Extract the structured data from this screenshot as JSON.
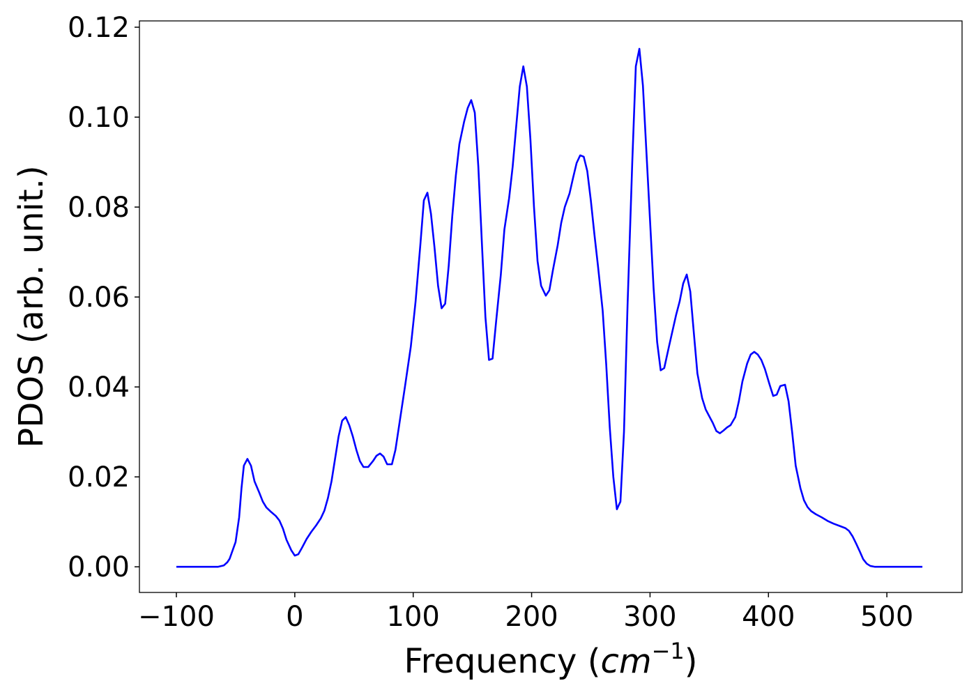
{
  "chart_data": {
    "type": "line",
    "ylabel": "PDOS (arb. unit.)",
    "xlabel": {
      "prefix": "Frequency (",
      "unit": "cm",
      "exponent": "−1",
      "suffix": ")"
    },
    "color": "#0000ff",
    "xlim": [
      -131.2,
      563.5
    ],
    "ylim": [
      -0.0057,
      0.1214
    ],
    "xticks": [
      {
        "value": -100,
        "label": "−100"
      },
      0,
      100,
      200,
      300,
      400,
      500
    ],
    "yticks": [
      {
        "value": 0,
        "label": "0.00"
      },
      0.02,
      0.04,
      0.06,
      0.08,
      {
        "value": 0.1,
        "label": "0.10"
      },
      0.12
    ],
    "x": [
      -100,
      -65,
      -60,
      -57,
      -55,
      -50,
      -47,
      -45,
      -43,
      -40,
      -37,
      -34,
      -30,
      -27,
      -24,
      -20,
      -16,
      -13,
      -10,
      -7,
      -3,
      0,
      3,
      6,
      10,
      14,
      18,
      22,
      25,
      28,
      31,
      34,
      37,
      40,
      43,
      46,
      49,
      52,
      55,
      58,
      62,
      66,
      69,
      72,
      75,
      78,
      82,
      85,
      89,
      93,
      98,
      102,
      106,
      109,
      112,
      115,
      118,
      121,
      124,
      127,
      130,
      133,
      136,
      139,
      143,
      146,
      149,
      152,
      155,
      158,
      161,
      164,
      167,
      170,
      174,
      177,
      181,
      184,
      187,
      190,
      193,
      196,
      199,
      202,
      205,
      208,
      212,
      215,
      218,
      222,
      225,
      228,
      232,
      235,
      238,
      241,
      244,
      247,
      250,
      253,
      256,
      260,
      263,
      266,
      269,
      272,
      275,
      278,
      281,
      285,
      288,
      291,
      294,
      297,
      300,
      303,
      306,
      309,
      312,
      316,
      319,
      322,
      325,
      328,
      331,
      334,
      337,
      340,
      344,
      347,
      350,
      353,
      356,
      359,
      362,
      365,
      368,
      372,
      375,
      378,
      382,
      385,
      388,
      391,
      394,
      397,
      401,
      404,
      407,
      410,
      414,
      417,
      420,
      423,
      427,
      430,
      433,
      436,
      440,
      445,
      450,
      455,
      460,
      465,
      468,
      471,
      474,
      477,
      480,
      483,
      486,
      490,
      530
    ],
    "values": [
      0,
      0,
      0.0003,
      0.001,
      0.0018,
      0.0055,
      0.011,
      0.0175,
      0.0225,
      0.024,
      0.0225,
      0.019,
      0.0165,
      0.0145,
      0.0132,
      0.0122,
      0.0113,
      0.0103,
      0.0085,
      0.006,
      0.0037,
      0.0025,
      0.0028,
      0.0042,
      0.0062,
      0.0078,
      0.0092,
      0.0108,
      0.0125,
      0.0153,
      0.019,
      0.024,
      0.029,
      0.0325,
      0.0333,
      0.0315,
      0.029,
      0.026,
      0.0235,
      0.0222,
      0.0222,
      0.0235,
      0.0247,
      0.0252,
      0.0245,
      0.0228,
      0.0228,
      0.026,
      0.033,
      0.04,
      0.049,
      0.059,
      0.0715,
      0.0815,
      0.0832,
      0.0785,
      0.071,
      0.0625,
      0.0575,
      0.0585,
      0.067,
      0.078,
      0.087,
      0.094,
      0.099,
      0.102,
      0.1038,
      0.101,
      0.089,
      0.072,
      0.0555,
      0.046,
      0.0463,
      0.0545,
      0.065,
      0.075,
      0.082,
      0.089,
      0.098,
      0.1068,
      0.1113,
      0.1068,
      0.095,
      0.08,
      0.068,
      0.0625,
      0.0603,
      0.0615,
      0.066,
      0.0715,
      0.0765,
      0.08,
      0.083,
      0.0865,
      0.0898,
      0.0915,
      0.0912,
      0.088,
      0.0815,
      0.074,
      0.067,
      0.057,
      0.045,
      0.031,
      0.02,
      0.0128,
      0.0145,
      0.03,
      0.058,
      0.09,
      0.1113,
      0.1152,
      0.107,
      0.092,
      0.077,
      0.062,
      0.05,
      0.0437,
      0.0442,
      0.049,
      0.0525,
      0.056,
      0.059,
      0.063,
      0.065,
      0.0612,
      0.052,
      0.043,
      0.0375,
      0.035,
      0.0335,
      0.032,
      0.0302,
      0.0297,
      0.0303,
      0.031,
      0.0315,
      0.0333,
      0.0368,
      0.0412,
      0.0452,
      0.0472,
      0.0478,
      0.0472,
      0.046,
      0.044,
      0.0405,
      0.038,
      0.0383,
      0.0402,
      0.0405,
      0.0368,
      0.03,
      0.0225,
      0.0175,
      0.0148,
      0.0133,
      0.0124,
      0.0117,
      0.011,
      0.0102,
      0.0096,
      0.0091,
      0.0086,
      0.008,
      0.0068,
      0.0052,
      0.0035,
      0.0017,
      0.0007,
      0.0002,
      0,
      0
    ]
  }
}
